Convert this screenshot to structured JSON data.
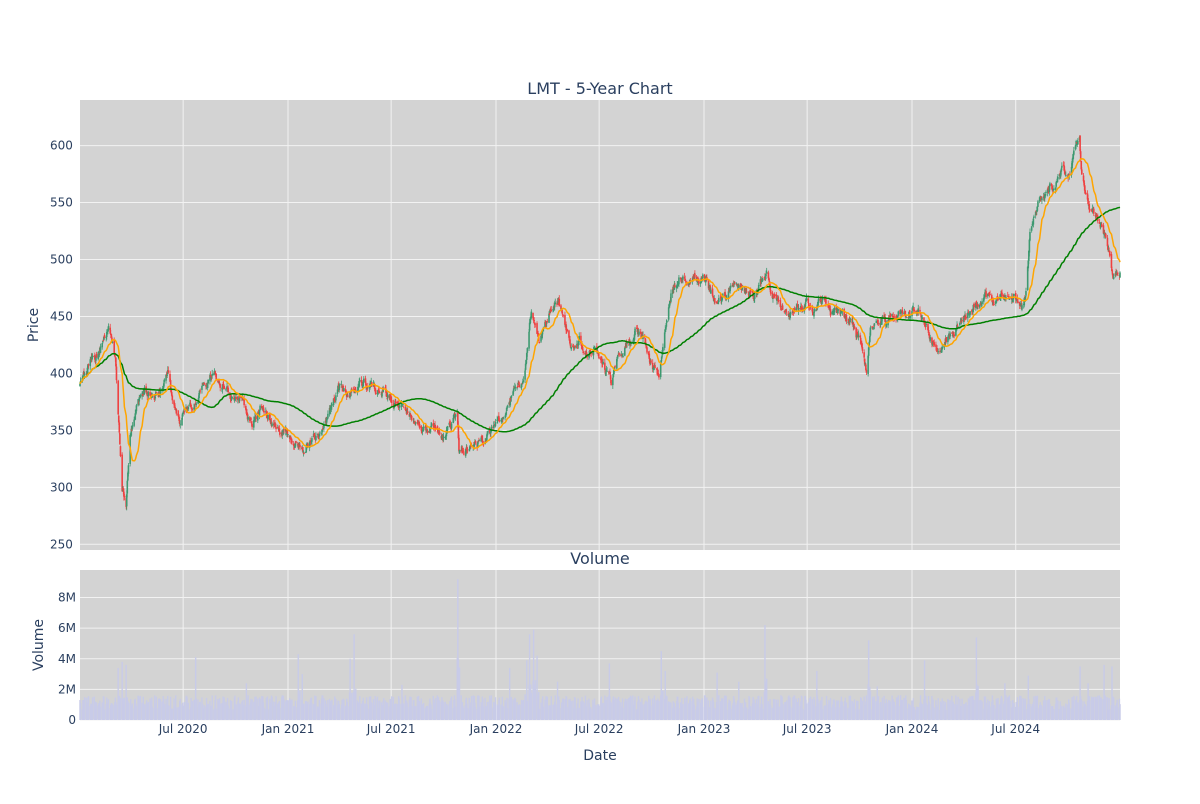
{
  "figure": {
    "title": "LMT - 5-Year Chart",
    "subtitle": "Volume",
    "xlabel": "Date",
    "colors": {
      "background": "#ffffff",
      "plot_bg": "#d3d3d3",
      "grid": "#f2f2f2",
      "text": "#2a3f5f",
      "up": "#3d9970",
      "down": "#ef4040",
      "ma_short": "#ffa500",
      "ma_long": "#008000",
      "volume": "#c8cbe8"
    }
  },
  "chart_data": [
    {
      "type": "candlestick",
      "title": "LMT - 5-Year Chart",
      "ylabel": "Price",
      "ylim": [
        245,
        640
      ],
      "yticks": [
        250,
        300,
        350,
        400,
        450,
        500,
        550,
        600
      ],
      "yticklabels": [
        "250",
        "300",
        "350",
        "400",
        "450",
        "500",
        "550",
        "600"
      ],
      "xlim": [
        "2020-01-02",
        "2024-12-31"
      ],
      "grid": true,
      "close_anchors": [
        [
          "2020-01-02",
          392
        ],
        [
          "2020-01-20",
          412
        ],
        [
          "2020-02-10",
          425
        ],
        [
          "2020-02-21",
          440
        ],
        [
          "2020-03-05",
          405
        ],
        [
          "2020-03-16",
          300
        ],
        [
          "2020-03-23",
          285
        ],
        [
          "2020-03-30",
          345
        ],
        [
          "2020-04-10",
          368
        ],
        [
          "2020-04-24",
          385
        ],
        [
          "2020-05-08",
          378
        ],
        [
          "2020-05-22",
          388
        ],
        [
          "2020-06-05",
          402
        ],
        [
          "2020-06-12",
          375
        ],
        [
          "2020-06-26",
          360
        ],
        [
          "2020-07-10",
          370
        ],
        [
          "2020-07-24",
          380
        ],
        [
          "2020-08-07",
          390
        ],
        [
          "2020-08-21",
          395
        ],
        [
          "2020-09-04",
          393
        ],
        [
          "2020-09-18",
          384
        ],
        [
          "2020-10-02",
          380
        ],
        [
          "2020-10-16",
          372
        ],
        [
          "2020-10-30",
          357
        ],
        [
          "2020-11-13",
          368
        ],
        [
          "2020-11-27",
          362
        ],
        [
          "2020-12-11",
          352
        ],
        [
          "2020-12-25",
          348
        ],
        [
          "2021-01-08",
          340
        ],
        [
          "2021-01-22",
          333
        ],
        [
          "2021-02-05",
          336
        ],
        [
          "2021-02-19",
          342
        ],
        [
          "2021-03-05",
          350
        ],
        [
          "2021-03-19",
          372
        ],
        [
          "2021-04-02",
          388
        ],
        [
          "2021-04-16",
          382
        ],
        [
          "2021-04-30",
          388
        ],
        [
          "2021-05-14",
          392
        ],
        [
          "2021-05-28",
          386
        ],
        [
          "2021-06-11",
          383
        ],
        [
          "2021-06-25",
          380
        ],
        [
          "2021-07-09",
          376
        ],
        [
          "2021-07-23",
          372
        ],
        [
          "2021-08-06",
          362
        ],
        [
          "2021-08-20",
          358
        ],
        [
          "2021-09-03",
          352
        ],
        [
          "2021-09-17",
          346
        ],
        [
          "2021-10-01",
          342
        ],
        [
          "2021-10-15",
          355
        ],
        [
          "2021-10-25",
          370
        ],
        [
          "2021-10-28",
          335
        ],
        [
          "2021-11-12",
          333
        ],
        [
          "2021-11-26",
          340
        ],
        [
          "2021-12-10",
          337
        ],
        [
          "2021-12-24",
          346
        ],
        [
          "2022-01-07",
          358
        ],
        [
          "2022-01-21",
          372
        ],
        [
          "2022-02-04",
          385
        ],
        [
          "2022-02-18",
          393
        ],
        [
          "2022-02-25",
          420
        ],
        [
          "2022-03-04",
          455
        ],
        [
          "2022-03-18",
          430
        ],
        [
          "2022-04-01",
          445
        ],
        [
          "2022-04-15",
          465
        ],
        [
          "2022-04-29",
          450
        ],
        [
          "2022-05-13",
          428
        ],
        [
          "2022-05-27",
          435
        ],
        [
          "2022-06-10",
          418
        ],
        [
          "2022-06-24",
          425
        ],
        [
          "2022-07-08",
          412
        ],
        [
          "2022-07-22",
          392
        ],
        [
          "2022-08-05",
          415
        ],
        [
          "2022-08-19",
          428
        ],
        [
          "2022-09-02",
          440
        ],
        [
          "2022-09-16",
          432
        ],
        [
          "2022-09-30",
          410
        ],
        [
          "2022-10-14",
          398
        ],
        [
          "2022-10-21",
          430
        ],
        [
          "2022-11-04",
          472
        ],
        [
          "2022-11-18",
          485
        ],
        [
          "2022-12-02",
          483
        ],
        [
          "2022-12-16",
          488
        ],
        [
          "2023-01-06",
          480
        ],
        [
          "2023-01-20",
          460
        ],
        [
          "2023-02-03",
          465
        ],
        [
          "2023-02-17",
          475
        ],
        [
          "2023-03-03",
          478
        ],
        [
          "2023-03-17",
          474
        ],
        [
          "2023-03-31",
          470
        ],
        [
          "2023-04-14",
          480
        ],
        [
          "2023-04-21",
          490
        ],
        [
          "2023-05-05",
          465
        ],
        [
          "2023-05-19",
          455
        ],
        [
          "2023-06-02",
          452
        ],
        [
          "2023-06-16",
          457
        ],
        [
          "2023-06-30",
          460
        ],
        [
          "2023-07-14",
          453
        ],
        [
          "2023-07-28",
          465
        ],
        [
          "2023-08-11",
          452
        ],
        [
          "2023-08-25",
          450
        ],
        [
          "2023-09-08",
          444
        ],
        [
          "2023-09-22",
          438
        ],
        [
          "2023-10-06",
          418
        ],
        [
          "2023-10-13",
          402
        ],
        [
          "2023-10-20",
          440
        ],
        [
          "2023-11-03",
          448
        ],
        [
          "2023-11-17",
          444
        ],
        [
          "2023-12-01",
          448
        ],
        [
          "2023-12-15",
          452
        ],
        [
          "2023-12-29",
          450
        ],
        [
          "2024-01-12",
          458
        ],
        [
          "2024-01-26",
          440
        ],
        [
          "2024-02-09",
          425
        ],
        [
          "2024-02-23",
          427
        ],
        [
          "2024-03-08",
          432
        ],
        [
          "2024-03-22",
          442
        ],
        [
          "2024-04-05",
          452
        ],
        [
          "2024-04-19",
          460
        ],
        [
          "2024-05-03",
          463
        ],
        [
          "2024-05-17",
          468
        ],
        [
          "2024-05-31",
          466
        ],
        [
          "2024-06-14",
          462
        ],
        [
          "2024-06-28",
          468
        ],
        [
          "2024-07-12",
          462
        ],
        [
          "2024-07-19",
          470
        ],
        [
          "2024-07-26",
          520
        ],
        [
          "2024-08-09",
          545
        ],
        [
          "2024-08-23",
          560
        ],
        [
          "2024-09-06",
          565
        ],
        [
          "2024-09-20",
          575
        ],
        [
          "2024-10-04",
          580
        ],
        [
          "2024-10-11",
          600
        ],
        [
          "2024-10-21",
          612
        ],
        [
          "2024-10-24",
          580
        ],
        [
          "2024-11-07",
          548
        ],
        [
          "2024-11-21",
          535
        ],
        [
          "2024-12-05",
          522
        ],
        [
          "2024-12-12",
          505
        ],
        [
          "2024-12-18",
          485
        ],
        [
          "2024-12-31",
          488
        ]
      ],
      "series": [
        {
          "type": "candlestick"
        },
        {
          "type": "line",
          "smoothing": "short"
        },
        {
          "type": "line",
          "smoothing": "long"
        }
      ]
    },
    {
      "type": "bar",
      "title": "Volume",
      "ylabel": "Volume",
      "ylim": [
        0,
        9800000
      ],
      "yticks": [
        0,
        2000000,
        4000000,
        6000000,
        8000000
      ],
      "yticklabels": [
        "0",
        "2M",
        "4M",
        "6M",
        "8M"
      ],
      "grid": true,
      "base_level": 1200000,
      "spikes": [
        [
          "2020-03-09",
          3400000
        ],
        [
          "2020-03-16",
          3800000
        ],
        [
          "2020-03-23",
          3600000
        ],
        [
          "2020-07-23",
          4100000
        ],
        [
          "2020-10-20",
          2400000
        ],
        [
          "2021-01-19",
          4300000
        ],
        [
          "2021-01-26",
          3000000
        ],
        [
          "2021-04-20",
          4000000
        ],
        [
          "2021-04-27",
          5600000
        ],
        [
          "2021-07-20",
          2300000
        ],
        [
          "2021-10-26",
          9200000
        ],
        [
          "2021-10-27",
          3000000
        ],
        [
          "2022-01-25",
          3400000
        ],
        [
          "2022-02-24",
          3900000
        ],
        [
          "2022-03-01",
          5600000
        ],
        [
          "2022-03-08",
          5900000
        ],
        [
          "2022-03-14",
          4200000
        ],
        [
          "2022-04-19",
          2500000
        ],
        [
          "2022-07-19",
          3700000
        ],
        [
          "2022-10-18",
          4500000
        ],
        [
          "2022-10-25",
          3200000
        ],
        [
          "2023-01-24",
          3100000
        ],
        [
          "2023-03-03",
          2500000
        ],
        [
          "2023-04-18",
          6200000
        ],
        [
          "2023-07-18",
          3200000
        ],
        [
          "2023-10-17",
          5200000
        ],
        [
          "2023-11-01",
          2200000
        ],
        [
          "2024-01-23",
          3900000
        ],
        [
          "2024-04-23",
          5400000
        ],
        [
          "2024-06-12",
          2400000
        ],
        [
          "2024-07-23",
          2900000
        ],
        [
          "2024-10-22",
          3500000
        ],
        [
          "2024-11-05",
          2400000
        ],
        [
          "2024-12-03",
          3600000
        ],
        [
          "2024-12-17",
          3500000
        ]
      ]
    }
  ],
  "xaxis": {
    "ticks": [
      "2020-07-01",
      "2021-01-01",
      "2021-07-01",
      "2022-01-01",
      "2022-07-01",
      "2023-01-01",
      "2023-07-01",
      "2024-01-01",
      "2024-07-01"
    ],
    "ticklabels": [
      "Jul 2020",
      "Jan 2021",
      "Jul 2021",
      "Jan 2022",
      "Jul 2022",
      "Jan 2023",
      "Jul 2023",
      "Jan 2024",
      "Jul 2024"
    ]
  }
}
